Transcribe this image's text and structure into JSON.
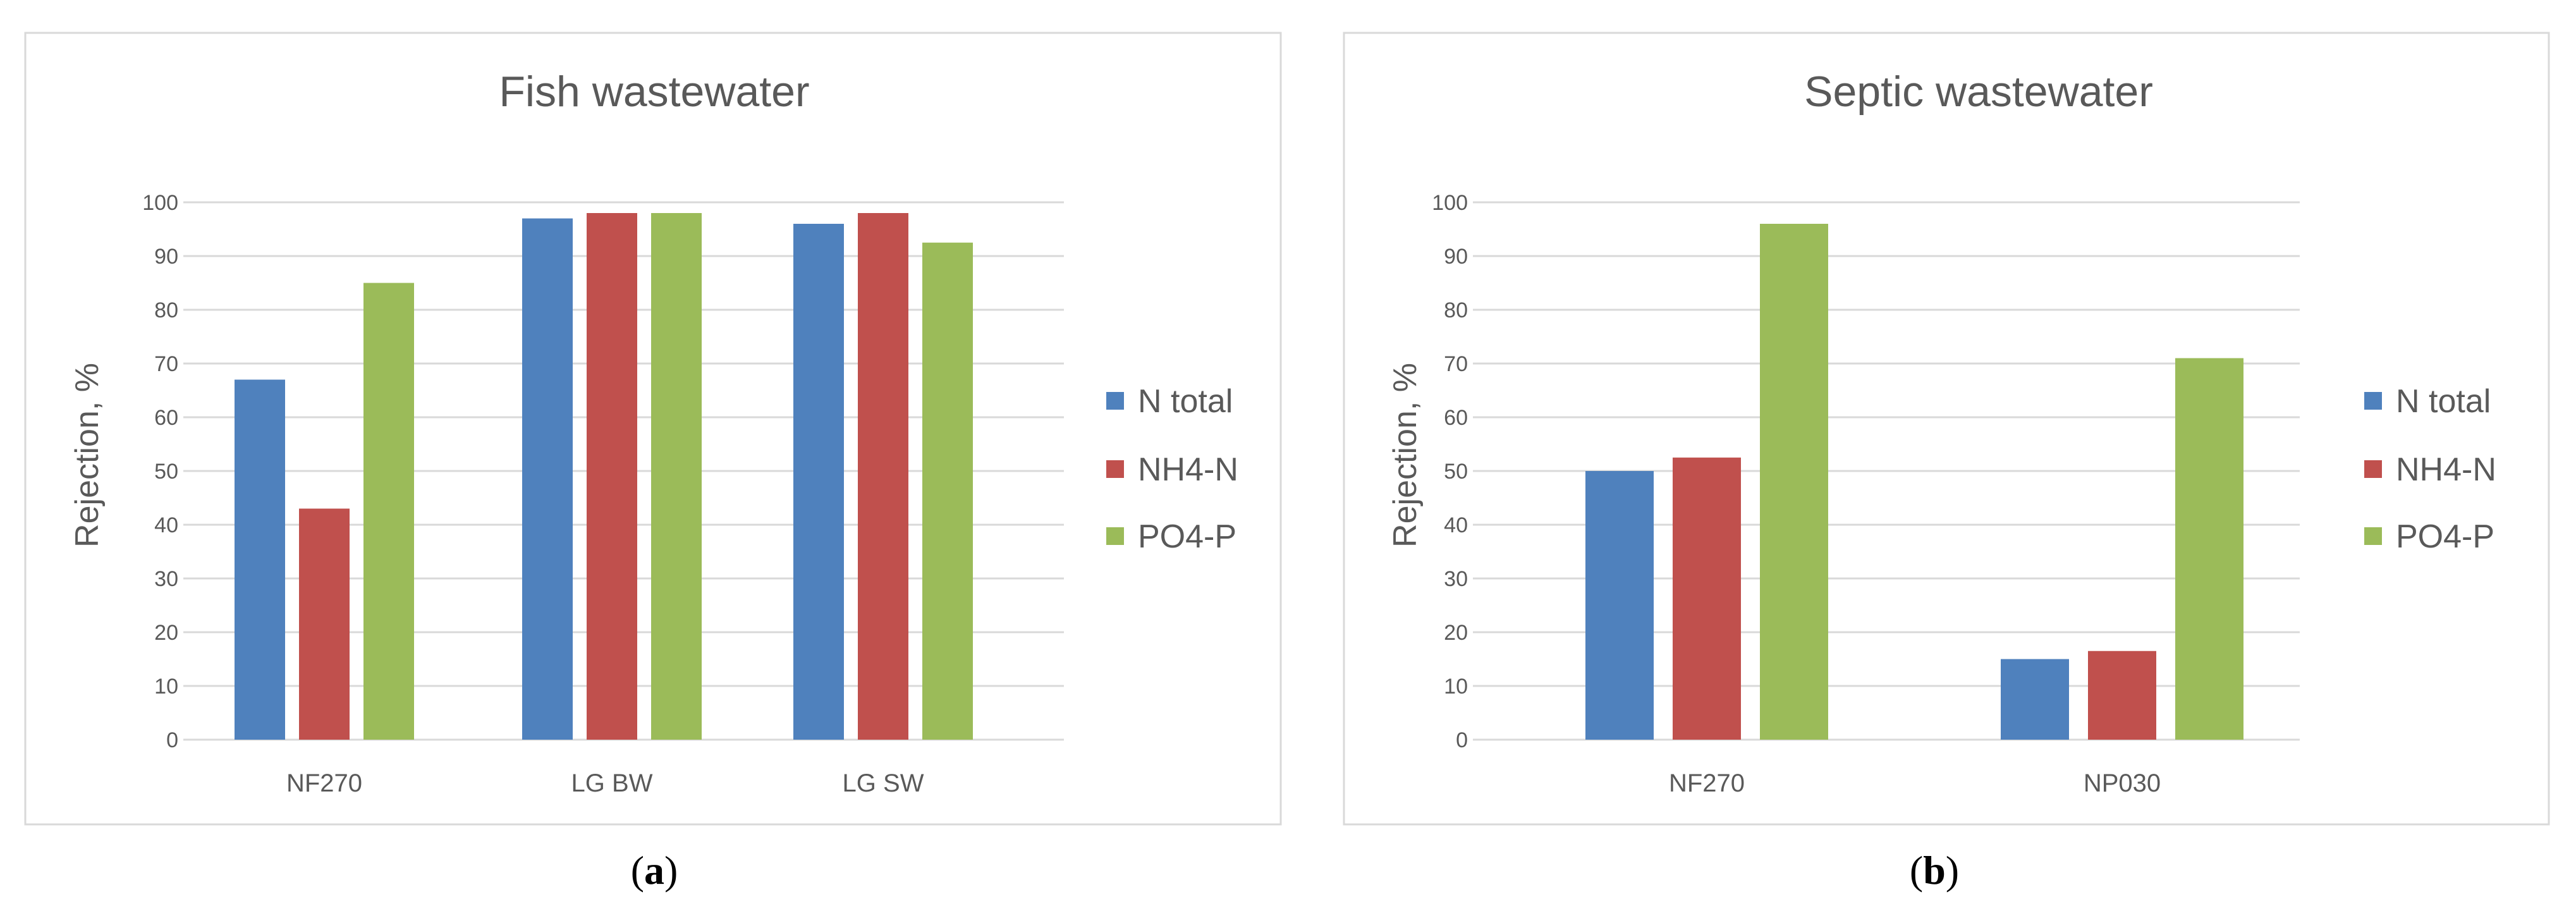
{
  "chart_data": [
    {
      "type": "bar",
      "title": "Fish wastewater",
      "ylabel": "Rejection, %",
      "xlabel": "",
      "ylim": [
        0,
        100
      ],
      "yticks": [
        0,
        10,
        20,
        30,
        40,
        50,
        60,
        70,
        80,
        90,
        100
      ],
      "grid": true,
      "legend_position": "right",
      "categories": [
        "NF270",
        "LG BW",
        "LG SW"
      ],
      "series": [
        {
          "name": "N total",
          "color": "#4f81bd",
          "values": [
            67,
            97,
            96
          ]
        },
        {
          "name": "NH4-N",
          "color": "#c0504d",
          "values": [
            43,
            98,
            98
          ]
        },
        {
          "name": "PO4-P",
          "color": "#9bbb59",
          "values": [
            85,
            98,
            92.5
          ]
        }
      ],
      "panel_label": {
        "open": "(",
        "letter": "a",
        "close": ")"
      }
    },
    {
      "type": "bar",
      "title": "Septic wastewater",
      "ylabel": "Rejection, %",
      "xlabel": "",
      "ylim": [
        0,
        100
      ],
      "yticks": [
        0,
        10,
        20,
        30,
        40,
        50,
        60,
        70,
        80,
        90,
        100
      ],
      "grid": true,
      "legend_position": "right",
      "categories": [
        "NF270",
        "NP030"
      ],
      "series": [
        {
          "name": "N total",
          "color": "#4f81bd",
          "values": [
            50,
            15
          ]
        },
        {
          "name": "NH4-N",
          "color": "#c0504d",
          "values": [
            52.5,
            16.5
          ]
        },
        {
          "name": "PO4-P",
          "color": "#9bbb59",
          "values": [
            96,
            71
          ]
        }
      ],
      "panel_label": {
        "open": "(",
        "letter": "b",
        "close": ")"
      }
    }
  ]
}
